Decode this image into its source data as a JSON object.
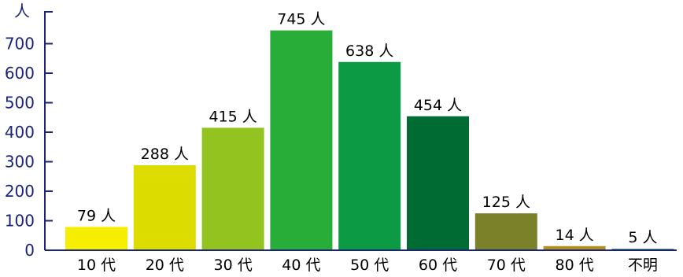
{
  "chart_data": {
    "type": "bar",
    "title": "",
    "ylabel": "人",
    "ylim": [
      0,
      800
    ],
    "yticks": [
      0,
      100,
      200,
      300,
      400,
      500,
      600,
      700
    ],
    "categories": [
      "10 代",
      "20 代",
      "30 代",
      "40 代",
      "50 代",
      "60 代",
      "70 代",
      "80 代",
      "不明"
    ],
    "values": [
      79,
      288,
      415,
      745,
      638,
      454,
      125,
      14,
      5
    ],
    "data_labels": [
      "79 人",
      "288 人",
      "415 人",
      "745 人",
      "638 人",
      "454 人",
      "125 人",
      "14 人",
      "5 人"
    ],
    "colors": [
      "#f5ee00",
      "#dcdc00",
      "#92c31f",
      "#28ad38",
      "#0c9a45",
      "#006c34",
      "#7a8128",
      "#b08f1a",
      "#3a7f78"
    ],
    "grid": false,
    "legend": "none"
  }
}
